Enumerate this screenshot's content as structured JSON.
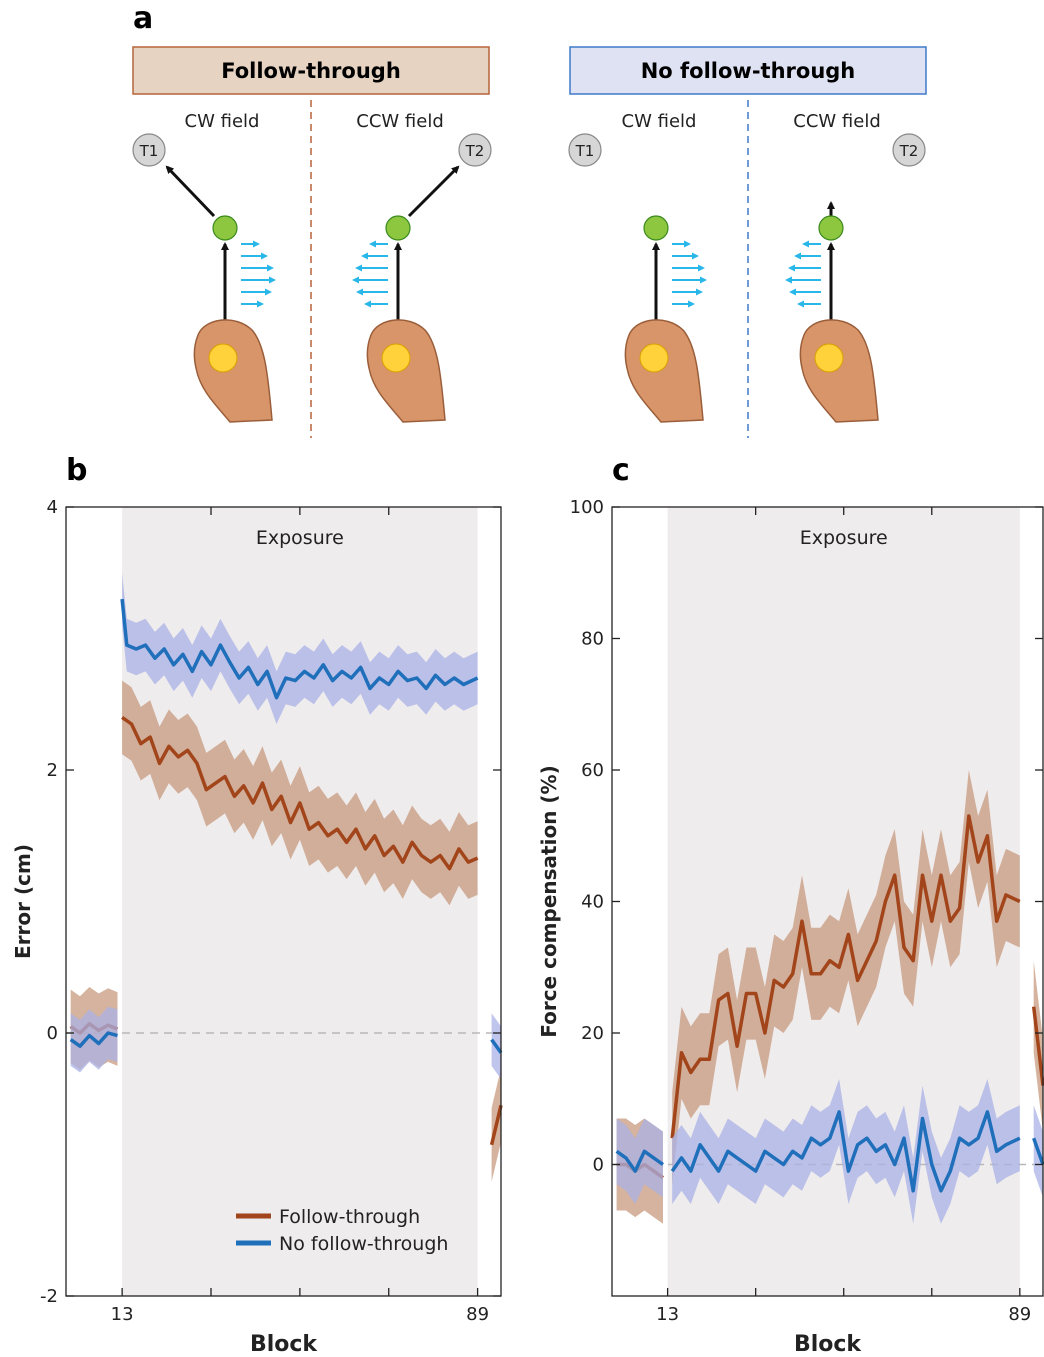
{
  "panel_labels": {
    "a": "a",
    "b": "b",
    "c": "c"
  },
  "panel_a": {
    "follow_through_title": "Follow-through",
    "no_follow_through_title": "No follow-through",
    "cw_field": "CW field",
    "ccw_field": "CCW field",
    "t1": "T1",
    "t2": "T2",
    "colors": {
      "follow_box": "#e6d3c2",
      "follow_border": "#b5643a",
      "nofollow_box": "#dfe2f3",
      "nofollow_border": "#3f79c9",
      "force_arrow": "#29b6e8",
      "via_point": "#8dc63f",
      "target": "#d6d6d6",
      "hand_ball": "#ffd13a"
    }
  },
  "legend": {
    "follow_through": "Follow-through",
    "no_follow_through": "No follow-through"
  },
  "chart_data": [
    {
      "type": "line",
      "panel": "b",
      "exposure_label": "Exposure",
      "xlabel": "Block",
      "ylabel": "Error (cm)",
      "ylim": [
        -2,
        4
      ],
      "yticks": [
        "-2",
        "0",
        "2",
        "4"
      ],
      "xticks": [
        "13",
        "89"
      ],
      "exposure_range": [
        13,
        89
      ],
      "series": [
        {
          "name": "Follow-through",
          "color": "#a2451b",
          "band_color": "#c79a7e",
          "values": [
            [
              2,
              0.05
            ],
            [
              4,
              0.0
            ],
            [
              6,
              0.07
            ],
            [
              8,
              0.02
            ],
            [
              10,
              0.06
            ],
            [
              12,
              0.03
            ],
            [
              13,
              2.4
            ],
            [
              15,
              2.35
            ],
            [
              17,
              2.2
            ],
            [
              19,
              2.25
            ],
            [
              21,
              2.05
            ],
            [
              23,
              2.18
            ],
            [
              25,
              2.1
            ],
            [
              27,
              2.15
            ],
            [
              29,
              2.05
            ],
            [
              31,
              1.85
            ],
            [
              33,
              1.9
            ],
            [
              35,
              1.95
            ],
            [
              37,
              1.8
            ],
            [
              39,
              1.88
            ],
            [
              41,
              1.75
            ],
            [
              43,
              1.9
            ],
            [
              45,
              1.7
            ],
            [
              47,
              1.8
            ],
            [
              49,
              1.6
            ],
            [
              51,
              1.75
            ],
            [
              53,
              1.55
            ],
            [
              55,
              1.6
            ],
            [
              57,
              1.5
            ],
            [
              59,
              1.55
            ],
            [
              61,
              1.45
            ],
            [
              63,
              1.55
            ],
            [
              65,
              1.4
            ],
            [
              67,
              1.5
            ],
            [
              69,
              1.35
            ],
            [
              71,
              1.42
            ],
            [
              73,
              1.3
            ],
            [
              75,
              1.45
            ],
            [
              77,
              1.35
            ],
            [
              79,
              1.3
            ],
            [
              81,
              1.35
            ],
            [
              83,
              1.25
            ],
            [
              85,
              1.4
            ],
            [
              87,
              1.3
            ],
            [
              89,
              1.33
            ],
            [
              92,
              -0.85
            ],
            [
              94,
              -0.55
            ]
          ],
          "band": 0.28
        },
        {
          "name": "No follow-through",
          "color": "#1f6fba",
          "band_color": "#aab2e6",
          "values": [
            [
              2,
              -0.05
            ],
            [
              4,
              -0.1
            ],
            [
              6,
              -0.02
            ],
            [
              8,
              -0.08
            ],
            [
              10,
              0.0
            ],
            [
              12,
              -0.02
            ],
            [
              13,
              3.3
            ],
            [
              14,
              2.95
            ],
            [
              16,
              2.92
            ],
            [
              18,
              2.95
            ],
            [
              20,
              2.85
            ],
            [
              22,
              2.92
            ],
            [
              24,
              2.8
            ],
            [
              26,
              2.88
            ],
            [
              28,
              2.75
            ],
            [
              30,
              2.9
            ],
            [
              32,
              2.8
            ],
            [
              34,
              2.95
            ],
            [
              36,
              2.82
            ],
            [
              38,
              2.7
            ],
            [
              40,
              2.78
            ],
            [
              42,
              2.65
            ],
            [
              44,
              2.75
            ],
            [
              46,
              2.55
            ],
            [
              48,
              2.7
            ],
            [
              50,
              2.68
            ],
            [
              52,
              2.75
            ],
            [
              54,
              2.7
            ],
            [
              56,
              2.8
            ],
            [
              58,
              2.68
            ],
            [
              60,
              2.75
            ],
            [
              62,
              2.7
            ],
            [
              64,
              2.78
            ],
            [
              66,
              2.62
            ],
            [
              68,
              2.7
            ],
            [
              70,
              2.65
            ],
            [
              72,
              2.75
            ],
            [
              74,
              2.68
            ],
            [
              76,
              2.7
            ],
            [
              78,
              2.62
            ],
            [
              80,
              2.72
            ],
            [
              82,
              2.65
            ],
            [
              84,
              2.7
            ],
            [
              86,
              2.65
            ],
            [
              89,
              2.7
            ],
            [
              92,
              -0.05
            ],
            [
              94,
              -0.15
            ]
          ],
          "band": 0.2
        }
      ]
    },
    {
      "type": "line",
      "panel": "c",
      "exposure_label": "Exposure",
      "xlabel": "Block",
      "ylabel": "Force compensation (%)",
      "ylim": [
        -20,
        100
      ],
      "yticks": [
        "0",
        "20",
        "40",
        "60",
        "80",
        "100"
      ],
      "xticks": [
        "13",
        "89"
      ],
      "exposure_range": [
        13,
        89
      ],
      "series": [
        {
          "name": "Follow-through",
          "color": "#a2451b",
          "band_color": "#c79a7e",
          "values": [
            [
              2,
              0
            ],
            [
              4,
              0
            ],
            [
              6,
              -1
            ],
            [
              8,
              0
            ],
            [
              10,
              -1
            ],
            [
              12,
              -2
            ],
            [
              14,
              4
            ],
            [
              16,
              17
            ],
            [
              18,
              14
            ],
            [
              20,
              16
            ],
            [
              22,
              16
            ],
            [
              24,
              25
            ],
            [
              26,
              26
            ],
            [
              28,
              18
            ],
            [
              30,
              26
            ],
            [
              32,
              26
            ],
            [
              34,
              20
            ],
            [
              36,
              28
            ],
            [
              38,
              27
            ],
            [
              40,
              29
            ],
            [
              42,
              37
            ],
            [
              44,
              29
            ],
            [
              46,
              29
            ],
            [
              48,
              31
            ],
            [
              50,
              30
            ],
            [
              52,
              35
            ],
            [
              54,
              28
            ],
            [
              56,
              31
            ],
            [
              58,
              34
            ],
            [
              60,
              40
            ],
            [
              62,
              44
            ],
            [
              64,
              33
            ],
            [
              66,
              31
            ],
            [
              68,
              44
            ],
            [
              70,
              37
            ],
            [
              72,
              44
            ],
            [
              74,
              37
            ],
            [
              76,
              39
            ],
            [
              78,
              53
            ],
            [
              80,
              46
            ],
            [
              82,
              50
            ],
            [
              84,
              37
            ],
            [
              86,
              41
            ],
            [
              89,
              40
            ],
            [
              92,
              24
            ],
            [
              94,
              12
            ]
          ],
          "band": 7
        },
        {
          "name": "No follow-through",
          "color": "#1f6fba",
          "band_color": "#aab2e6",
          "values": [
            [
              2,
              2
            ],
            [
              4,
              1
            ],
            [
              6,
              -1
            ],
            [
              8,
              2
            ],
            [
              10,
              1
            ],
            [
              12,
              0
            ],
            [
              14,
              -1
            ],
            [
              16,
              1
            ],
            [
              18,
              -1
            ],
            [
              20,
              3
            ],
            [
              22,
              1
            ],
            [
              24,
              -1
            ],
            [
              26,
              2
            ],
            [
              28,
              1
            ],
            [
              30,
              0
            ],
            [
              32,
              -1
            ],
            [
              34,
              2
            ],
            [
              36,
              1
            ],
            [
              38,
              0
            ],
            [
              40,
              2
            ],
            [
              42,
              1
            ],
            [
              44,
              4
            ],
            [
              46,
              3
            ],
            [
              48,
              4
            ],
            [
              50,
              8
            ],
            [
              52,
              -1
            ],
            [
              54,
              3
            ],
            [
              56,
              4
            ],
            [
              58,
              2
            ],
            [
              60,
              3
            ],
            [
              62,
              0
            ],
            [
              64,
              4
            ],
            [
              66,
              -4
            ],
            [
              68,
              7
            ],
            [
              70,
              0
            ],
            [
              72,
              -4
            ],
            [
              74,
              -1
            ],
            [
              76,
              4
            ],
            [
              78,
              3
            ],
            [
              80,
              4
            ],
            [
              82,
              8
            ],
            [
              84,
              2
            ],
            [
              86,
              3
            ],
            [
              89,
              4
            ],
            [
              92,
              4
            ],
            [
              94,
              0
            ]
          ],
          "band": 5
        }
      ]
    }
  ]
}
